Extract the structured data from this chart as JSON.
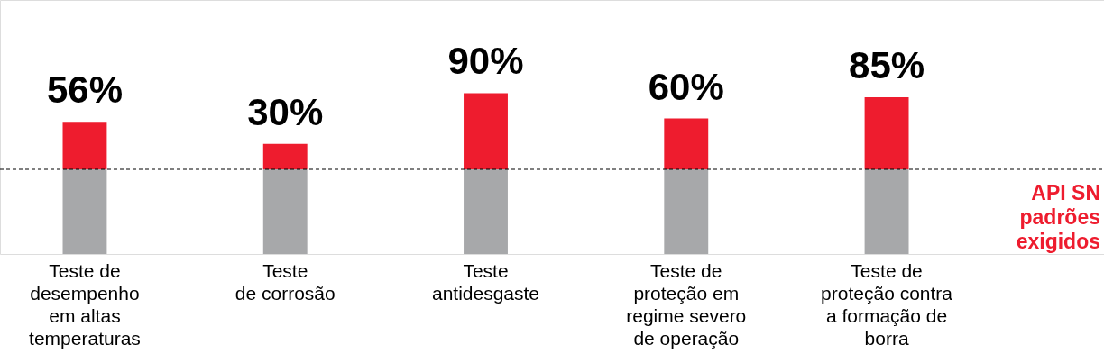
{
  "chart_data": {
    "type": "bar",
    "stacked": true,
    "categories": [
      "Teste de\ndesempenho\nem altas\ntemperaturas",
      "Teste\nde corrosão",
      "Teste\nantidesgaste",
      "Teste de\nproteção em\nregime severo\nde operação",
      "Teste de\nproteção contra\na formação de\nborra"
    ],
    "series": [
      {
        "color": "#a7a8aa",
        "values": [
          100,
          100,
          100,
          100,
          100
        ]
      },
      {
        "color": "#ee1c2e",
        "values": [
          56,
          30,
          90,
          60,
          85
        ],
        "value_labels": [
          "56%",
          "30%",
          "90%",
          "60%",
          "85%"
        ]
      }
    ],
    "ylim": [
      0,
      300
    ],
    "tick_labels": "x",
    "grid": false,
    "ref_lines": [
      {
        "axis": "y",
        "value": 100,
        "label": "API SN\npadrões\nexigidos",
        "color": "#000000",
        "line_style": "dashed"
      }
    ]
  }
}
